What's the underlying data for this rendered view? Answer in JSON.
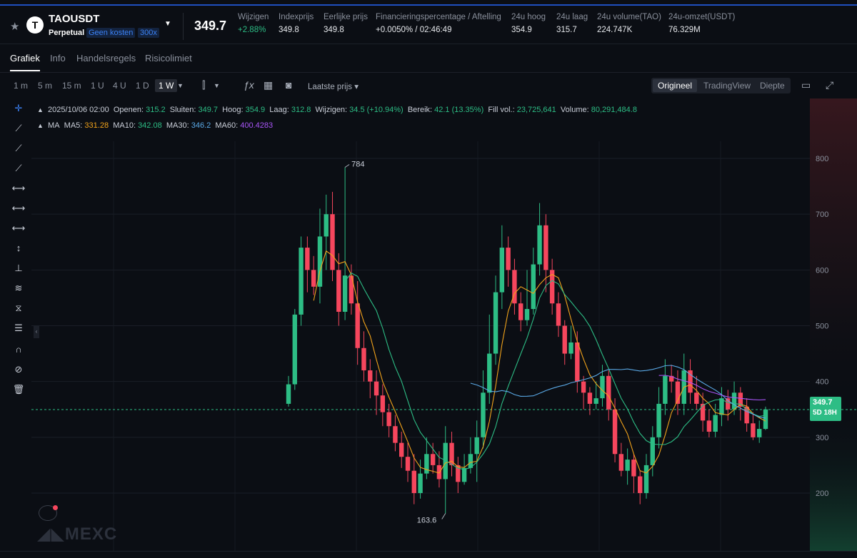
{
  "header": {
    "symbol": "TAOUSDT",
    "coin_letter": "T",
    "contract": "Perpetual",
    "fee_tag": "Geen kosten",
    "leverage": "300x",
    "last_price": "349.7",
    "stats": [
      {
        "label": "Wijzigen",
        "value": "+2.88%"
      },
      {
        "label": "Indexprijs",
        "value": "349.8"
      },
      {
        "label": "Eerlijke prijs",
        "value": "349.8"
      },
      {
        "label": "Financieringspercentage / Aftelling",
        "value": "+0.0050% / 02:46:49"
      },
      {
        "label": "24u hoog",
        "value": "354.9"
      },
      {
        "label": "24u laag",
        "value": "315.7"
      },
      {
        "label": "24u volume(TAO)",
        "value": "224.747K"
      },
      {
        "label": "24u-omzet(USDT)",
        "value": "76.329M"
      }
    ]
  },
  "tabs": [
    "Grafiek",
    "Info",
    "Handelsregels",
    "Risicolimiet"
  ],
  "toolbar": {
    "timeframes": [
      "1 m",
      "5 m",
      "15 m",
      "1 U",
      "4 U",
      "1 D",
      "1 W"
    ],
    "active_timeframe": "1 W",
    "price_type": "Laatste prijs",
    "views": [
      "Origineel",
      "TradingView",
      "Diepte"
    ],
    "active_view": "Origineel"
  },
  "legend": {
    "date": "2025/10/06 02:00",
    "open_label": "Openen:",
    "open": "315.2",
    "close_label": "Sluiten:",
    "close": "349.7",
    "high_label": "Hoog:",
    "high": "354.9",
    "low_label": "Laag:",
    "low": "312.8",
    "change_label": "Wijzigen:",
    "change": "34.5 (+10.94%)",
    "range_label": "Bereik:",
    "range": "42.1 (13.35%)",
    "fillvol_label": "Fill vol.:",
    "fillvol": "23,725,641",
    "volume_label": "Volume:",
    "volume": "80,291,484.8",
    "ma_label": "MA",
    "ma5_label": "MA5:",
    "ma5": "331.28",
    "ma10_label": "MA10:",
    "ma10": "342.08",
    "ma30_label": "MA30:",
    "ma30": "346.2",
    "ma60_label": "MA60:",
    "ma60": "400.4283"
  },
  "colors": {
    "up": "#2dbd85",
    "down": "#f6465d",
    "ma5": "#f0a21b",
    "ma10": "#2dbd85",
    "ma30": "#5aa9e6",
    "ma60": "#a855f7"
  },
  "chart_data": {
    "type": "candlestick",
    "y_ticks": [
      800,
      700,
      600,
      500,
      400,
      300,
      200
    ],
    "ylim": [
      140,
      860
    ],
    "current_price_label": "349.7",
    "countdown_label": "5D 18H",
    "max_annotation": "784",
    "min_annotation": "163.6",
    "candles": [
      [
        360,
        395,
        410,
        355
      ],
      [
        395,
        520,
        530,
        385
      ],
      [
        520,
        640,
        660,
        500
      ],
      [
        640,
        600,
        660,
        560
      ],
      [
        600,
        570,
        625,
        555
      ],
      [
        570,
        660,
        710,
        540
      ],
      [
        660,
        700,
        735,
        600
      ],
      [
        700,
        600,
        740,
        580
      ],
      [
        600,
        525,
        630,
        500
      ],
      [
        525,
        590,
        784,
        510
      ],
      [
        590,
        540,
        610,
        520
      ],
      [
        540,
        460,
        580,
        430
      ],
      [
        460,
        420,
        490,
        400
      ],
      [
        420,
        400,
        440,
        370
      ],
      [
        400,
        375,
        420,
        340
      ],
      [
        375,
        345,
        395,
        320
      ],
      [
        345,
        320,
        360,
        300
      ],
      [
        320,
        290,
        340,
        275
      ],
      [
        290,
        265,
        310,
        245
      ],
      [
        265,
        240,
        290,
        220
      ],
      [
        240,
        200,
        270,
        180
      ],
      [
        200,
        235,
        260,
        190
      ],
      [
        235,
        270,
        300,
        225
      ],
      [
        270,
        250,
        290,
        235
      ],
      [
        250,
        225,
        275,
        210
      ],
      [
        225,
        290,
        320,
        163.6
      ],
      [
        290,
        250,
        310,
        230
      ],
      [
        250,
        220,
        265,
        200
      ],
      [
        220,
        245,
        270,
        215
      ],
      [
        245,
        270,
        300,
        235
      ],
      [
        270,
        300,
        330,
        220
      ],
      [
        300,
        380,
        420,
        280
      ],
      [
        380,
        450,
        520,
        360
      ],
      [
        450,
        560,
        590,
        430
      ],
      [
        560,
        640,
        680,
        530
      ],
      [
        640,
        600,
        660,
        570
      ],
      [
        600,
        540,
        620,
        520
      ],
      [
        540,
        510,
        560,
        490
      ],
      [
        510,
        530,
        600,
        500
      ],
      [
        530,
        610,
        640,
        520
      ],
      [
        610,
        680,
        720,
        590
      ],
      [
        680,
        600,
        700,
        560
      ],
      [
        600,
        540,
        620,
        520
      ],
      [
        540,
        500,
        560,
        480
      ],
      [
        500,
        450,
        510,
        430
      ],
      [
        450,
        470,
        500,
        440
      ],
      [
        470,
        400,
        490,
        380
      ],
      [
        400,
        380,
        410,
        350
      ],
      [
        380,
        360,
        390,
        340
      ],
      [
        360,
        370,
        400,
        350
      ],
      [
        370,
        410,
        430,
        355
      ],
      [
        410,
        350,
        420,
        330
      ],
      [
        350,
        270,
        370,
        255
      ],
      [
        270,
        240,
        290,
        230
      ],
      [
        240,
        260,
        280,
        215
      ],
      [
        260,
        230,
        270,
        200
      ],
      [
        230,
        200,
        240,
        180
      ],
      [
        200,
        250,
        270,
        190
      ],
      [
        250,
        300,
        320,
        230
      ],
      [
        300,
        360,
        390,
        280
      ],
      [
        360,
        410,
        440,
        340
      ],
      [
        410,
        400,
        430,
        380
      ],
      [
        400,
        360,
        420,
        340
      ],
      [
        360,
        420,
        450,
        340
      ],
      [
        420,
        380,
        440,
        360
      ],
      [
        380,
        360,
        410,
        350
      ],
      [
        360,
        330,
        380,
        310
      ],
      [
        330,
        310,
        350,
        300
      ],
      [
        310,
        340,
        360,
        300
      ],
      [
        340,
        370,
        390,
        320
      ],
      [
        370,
        350,
        385,
        330
      ],
      [
        350,
        380,
        400,
        340
      ],
      [
        380,
        355,
        390,
        330
      ],
      [
        355,
        325,
        370,
        310
      ],
      [
        325,
        300,
        345,
        295
      ],
      [
        300,
        315,
        330,
        290
      ],
      [
        315,
        350,
        355,
        313
      ]
    ]
  }
}
